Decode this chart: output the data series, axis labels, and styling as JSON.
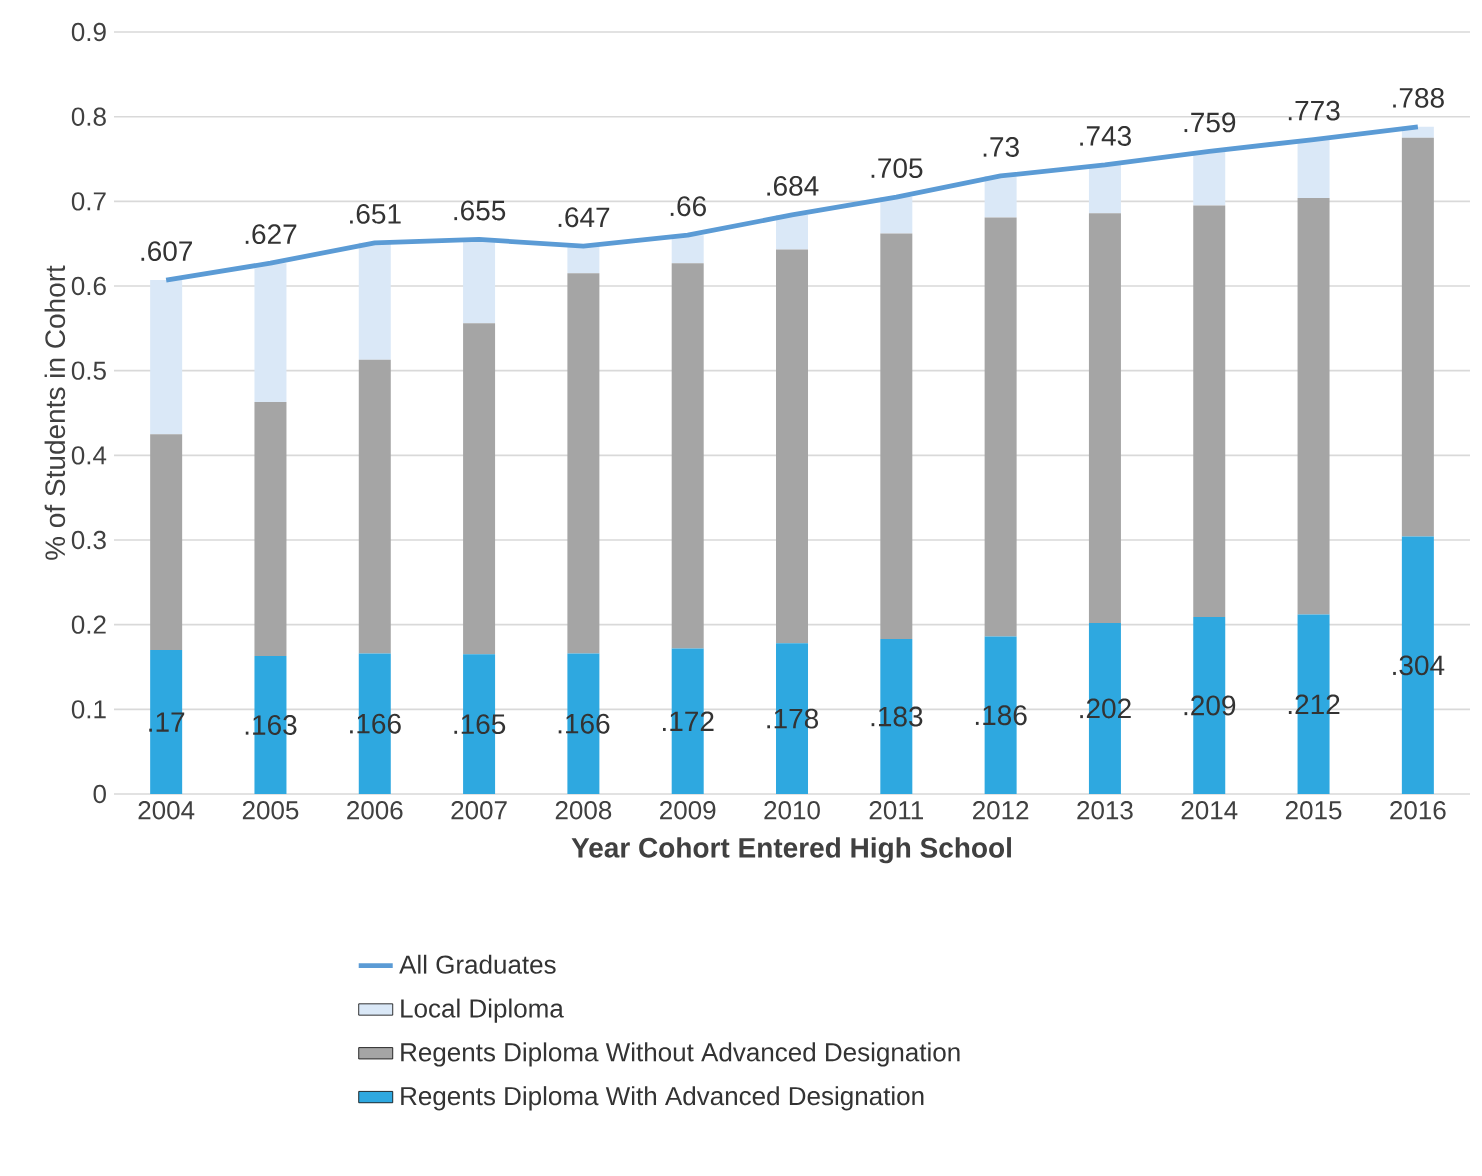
{
  "chart_data": {
    "type": "bar",
    "stacked": true,
    "xlabel": "Year Cohort Entered High School",
    "ylabel": "% of Students in Cohort",
    "categories": [
      "2004",
      "2005",
      "2006",
      "2007",
      "2008",
      "2009",
      "2010",
      "2011",
      "2012",
      "2013",
      "2014",
      "2015",
      "2016"
    ],
    "ylim": [
      0,
      0.9
    ],
    "yticks": [
      0,
      0.1,
      0.2,
      0.3,
      0.4,
      0.5,
      0.6,
      0.7,
      0.8,
      0.9
    ],
    "grid": "y",
    "legend": "bottom",
    "series": [
      {
        "name": "Regents Diploma With Advanced Designation",
        "color": "#2ea8e0",
        "values": [
          0.17,
          0.163,
          0.166,
          0.165,
          0.166,
          0.172,
          0.178,
          0.183,
          0.186,
          0.202,
          0.209,
          0.212,
          0.304
        ],
        "value_labels": [
          ".17",
          ".163",
          ".166",
          ".165",
          ".166",
          ".172",
          ".178",
          ".183",
          ".186",
          ".202",
          ".209",
          ".212",
          ".304"
        ]
      },
      {
        "name": "Regents Diploma Without Advanced Designation",
        "color": "#a5a5a5",
        "values": [
          0.255,
          0.3,
          0.347,
          0.391,
          0.449,
          0.455,
          0.465,
          0.479,
          0.495,
          0.484,
          0.486,
          0.492,
          0.471
        ]
      },
      {
        "name": "Local Diploma",
        "color": "#dae8f7",
        "values": [
          0.182,
          0.164,
          0.138,
          0.099,
          0.032,
          0.033,
          0.041,
          0.043,
          0.049,
          0.057,
          0.064,
          0.069,
          0.013
        ]
      },
      {
        "name": "All Graduates",
        "type": "line",
        "color": "#5b9bd5",
        "values": [
          0.607,
          0.627,
          0.651,
          0.655,
          0.647,
          0.66,
          0.684,
          0.705,
          0.73,
          0.743,
          0.759,
          0.773,
          0.788
        ],
        "value_labels": [
          ".607",
          ".627",
          ".651",
          ".655",
          ".647",
          ".66",
          ".684",
          ".705",
          ".73",
          ".743",
          ".759",
          ".773",
          ".788"
        ]
      }
    ]
  }
}
